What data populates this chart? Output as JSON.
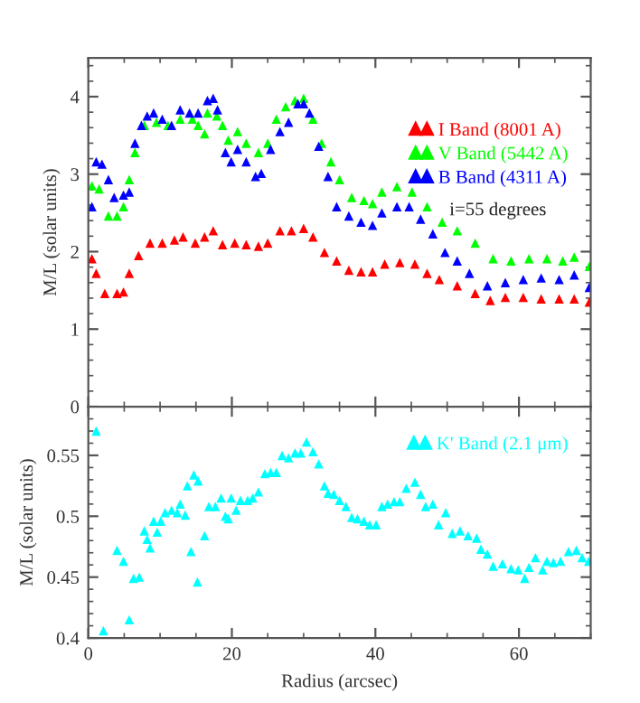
{
  "chart_data": [
    {
      "type": "scatter",
      "ylabel": "M/L (solar units)",
      "xlim": [
        0,
        70
      ],
      "xticks": [
        0,
        20,
        40,
        60
      ],
      "ylim": [
        0,
        4.5
      ],
      "yticks": [
        0,
        1,
        2,
        3,
        4
      ],
      "tick_labels": "y",
      "marker": "triangle",
      "legend": "top right",
      "grid": false,
      "annotations": [
        "i=55 degrees"
      ],
      "series": [
        {
          "name": "I Band (8001 A)",
          "color": "#ff0000",
          "x": [
            0.5,
            1.1,
            2.3,
            4.0,
            4.9,
            5.7,
            7.0,
            8.6,
            10.3,
            12.0,
            13.2,
            14.9,
            16.2,
            17.4,
            18.7,
            20.4,
            22.0,
            23.7,
            25.0,
            26.7,
            28.3,
            30.0,
            31.3,
            32.9,
            34.6,
            36.3,
            38.0,
            39.6,
            41.3,
            43.4,
            45.5,
            47.2,
            48.9,
            51.4,
            53.9,
            56.0,
            58.1,
            60.6,
            63.1,
            65.6,
            67.7,
            69.8
          ],
          "values": [
            1.91,
            1.72,
            1.46,
            1.46,
            1.48,
            1.72,
            1.95,
            2.11,
            2.11,
            2.15,
            2.19,
            2.11,
            2.19,
            2.27,
            2.09,
            2.11,
            2.09,
            2.07,
            2.11,
            2.27,
            2.27,
            2.3,
            2.19,
            1.99,
            1.88,
            1.76,
            1.74,
            1.74,
            1.84,
            1.86,
            1.84,
            1.72,
            1.64,
            1.56,
            1.46,
            1.37,
            1.41,
            1.41,
            1.39,
            1.39,
            1.39,
            1.35
          ]
        },
        {
          "name": "V Band (5442 A)",
          "color": "#00ff00",
          "x": [
            0.5,
            1.5,
            2.8,
            4.0,
            4.9,
            5.7,
            6.5,
            7.8,
            9.5,
            11.1,
            12.8,
            14.5,
            15.3,
            16.2,
            16.6,
            17.9,
            18.7,
            19.5,
            20.8,
            22.0,
            23.7,
            25.0,
            26.2,
            27.5,
            28.8,
            30.0,
            31.3,
            32.5,
            33.8,
            35.0,
            36.7,
            38.4,
            39.6,
            40.9,
            43.0,
            45.1,
            47.2,
            49.3,
            51.4,
            53.9,
            56.4,
            58.9,
            61.4,
            63.9,
            66.1,
            67.7,
            69.8
          ],
          "values": [
            2.85,
            2.81,
            2.46,
            2.46,
            2.58,
            2.93,
            3.28,
            3.63,
            3.67,
            3.63,
            3.71,
            3.71,
            3.63,
            3.52,
            3.79,
            3.75,
            3.63,
            3.44,
            3.55,
            3.4,
            3.28,
            3.4,
            3.71,
            3.87,
            3.95,
            3.98,
            3.71,
            3.4,
            3.16,
            2.93,
            2.7,
            2.66,
            2.62,
            2.77,
            2.84,
            2.77,
            2.58,
            2.38,
            2.27,
            2.11,
            1.91,
            1.88,
            1.91,
            1.91,
            1.88,
            1.93,
            1.81
          ]
        },
        {
          "name": "B Band (4311 A)",
          "color": "#0000ff",
          "x": [
            0.5,
            1.1,
            1.9,
            2.8,
            3.6,
            4.9,
            5.7,
            6.5,
            7.4,
            8.2,
            9.1,
            10.3,
            11.6,
            12.8,
            14.1,
            15.3,
            16.6,
            17.4,
            18.0,
            19.1,
            19.9,
            20.8,
            22.0,
            23.3,
            24.1,
            25.4,
            26.7,
            27.9,
            29.2,
            30.0,
            30.8,
            32.1,
            33.4,
            34.6,
            36.3,
            38.0,
            39.6,
            40.9,
            43.0,
            44.7,
            46.3,
            48.0,
            49.7,
            51.4,
            53.1,
            55.6,
            58.1,
            60.6,
            63.1,
            65.6,
            67.7,
            69.8
          ],
          "values": [
            2.58,
            3.16,
            3.13,
            2.93,
            2.7,
            2.73,
            2.77,
            3.4,
            3.63,
            3.75,
            3.79,
            3.71,
            3.63,
            3.83,
            3.79,
            3.79,
            3.95,
            3.98,
            3.83,
            3.28,
            3.16,
            3.32,
            3.16,
            2.97,
            3.01,
            3.32,
            3.55,
            3.67,
            3.91,
            3.91,
            3.79,
            3.36,
            2.97,
            2.58,
            2.46,
            2.38,
            2.34,
            2.5,
            2.58,
            2.58,
            2.42,
            2.23,
            1.99,
            1.88,
            1.72,
            1.56,
            1.6,
            1.64,
            1.66,
            1.64,
            1.7,
            1.54
          ]
        }
      ]
    },
    {
      "type": "scatter",
      "xlabel": "Radius (arcsec)",
      "ylabel": "M/L (solar units)",
      "xlim": [
        0,
        70
      ],
      "xticks": [
        0,
        20,
        40,
        60
      ],
      "ylim": [
        0.4,
        0.59
      ],
      "yticks": [
        0.4,
        0.45,
        0.5,
        0.55
      ],
      "marker": "triangle",
      "legend": "top right",
      "grid": false,
      "series": [
        {
          "name": "K' Band (2.1 μm)",
          "color": "#00ffff",
          "x": [
            1.1,
            2.1,
            4.0,
            4.9,
            5.7,
            6.3,
            7.1,
            7.8,
            8.2,
            8.6,
            9.1,
            9.6,
            10.1,
            10.7,
            11.6,
            12.4,
            12.8,
            13.5,
            13.8,
            14.3,
            14.7,
            15.3,
            15.2,
            16.2,
            16.8,
            17.7,
            18.5,
            19.1,
            19.5,
            19.9,
            20.6,
            21.2,
            22.2,
            22.9,
            23.7,
            24.6,
            25.4,
            26.2,
            27.0,
            27.9,
            28.8,
            29.6,
            30.4,
            31.3,
            32.1,
            32.9,
            33.4,
            34.2,
            35.0,
            35.9,
            36.7,
            37.5,
            38.4,
            39.2,
            40.1,
            40.9,
            41.7,
            42.6,
            43.4,
            44.3,
            45.5,
            46.3,
            47.0,
            48.0,
            48.8,
            49.8,
            50.7,
            51.8,
            52.9,
            54.1,
            54.7,
            55.6,
            56.4,
            57.7,
            58.9,
            59.9,
            60.8,
            61.4,
            62.3,
            63.3,
            63.9,
            64.8,
            65.8,
            66.9,
            68.0,
            68.8,
            69.7
          ],
          "values": [
            0.57,
            0.406,
            0.472,
            0.463,
            0.415,
            0.449,
            0.45,
            0.488,
            0.481,
            0.474,
            0.496,
            0.487,
            0.496,
            0.503,
            0.505,
            0.503,
            0.51,
            0.501,
            0.525,
            0.471,
            0.534,
            0.529,
            0.446,
            0.484,
            0.508,
            0.508,
            0.515,
            0.5,
            0.498,
            0.515,
            0.505,
            0.513,
            0.513,
            0.515,
            0.52,
            0.535,
            0.536,
            0.536,
            0.55,
            0.548,
            0.552,
            0.552,
            0.561,
            0.553,
            0.543,
            0.525,
            0.519,
            0.518,
            0.513,
            0.508,
            0.499,
            0.498,
            0.496,
            0.493,
            0.493,
            0.508,
            0.51,
            0.512,
            0.512,
            0.523,
            0.528,
            0.518,
            0.508,
            0.51,
            0.493,
            0.503,
            0.486,
            0.488,
            0.484,
            0.482,
            0.473,
            0.469,
            0.459,
            0.461,
            0.457,
            0.456,
            0.449,
            0.458,
            0.466,
            0.456,
            0.463,
            0.462,
            0.463,
            0.471,
            0.472,
            0.466,
            0.463
          ]
        }
      ]
    }
  ]
}
